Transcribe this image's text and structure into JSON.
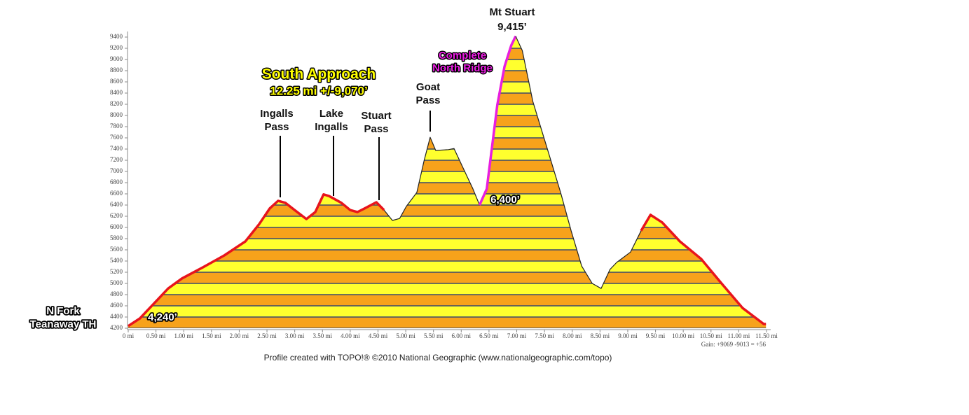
{
  "chart_data": {
    "type": "area",
    "footer": "Profile created with TOPO!® ©2010 National Geographic (www.nationalgeographic.com/topo)",
    "gain": "Gain: +9069 -9013 = +56",
    "annotations": [
      {
        "lines": [
          "Mt Stuart",
          "9,415’"
        ]
      },
      {
        "lines": [
          "South Approach"
        ]
      },
      {
        "lines": [
          "12.25 mi +/-9,070’"
        ]
      },
      {
        "lines": [
          "Complete",
          "North Ridge"
        ]
      },
      {
        "lines": [
          "Goat",
          "Pass"
        ]
      },
      {
        "lines": [
          "Ingalls",
          "Pass"
        ]
      },
      {
        "lines": [
          "Lake",
          "Ingalls"
        ]
      },
      {
        "lines": [
          "Stuart",
          "Pass"
        ]
      },
      {
        "lines": [
          "6,400’"
        ]
      },
      {
        "lines": [
          "4,240’"
        ]
      },
      {
        "lines": [
          "N Fork",
          "Teanaway TH"
        ]
      }
    ],
    "band_step": 200,
    "band_colors": [
      "#f7a21b",
      "#ffff2e"
    ],
    "band_line_color": "#3b4a6b",
    "series": [
      {
        "color": "#e8141c",
        "x": [
          0,
          0.21,
          0.72,
          0.97,
          1.35,
          1.73,
          2.11,
          2.36,
          2.55,
          2.7,
          2.83,
          3.0,
          3.21,
          3.37,
          3.52,
          3.62,
          3.84,
          4.0,
          4.13,
          4.26,
          4.47,
          4.61
        ],
        "values": [
          4240,
          4375,
          4910,
          5090,
          5290,
          5500,
          5750,
          6060,
          6340,
          6475,
          6440,
          6310,
          6150,
          6275,
          6590,
          6560,
          6440,
          6310,
          6275,
          6340,
          6450,
          6310
        ]
      },
      {
        "color": "#222222",
        "x": [
          4.61,
          4.76,
          4.89,
          5.01,
          5.2,
          5.33,
          5.44,
          5.54,
          5.77,
          5.87,
          6.02,
          6.21,
          6.33
        ],
        "values": [
          6310,
          6125,
          6160,
          6375,
          6625,
          7190,
          7610,
          7375,
          7390,
          7410,
          7090,
          6690,
          6400
        ]
      },
      {
        "color": "#e81ee0",
        "x": [
          6.33,
          6.46,
          6.65,
          6.78,
          6.9,
          6.98
        ],
        "values": [
          6400,
          6690,
          8190,
          8875,
          9250,
          9415
        ]
      },
      {
        "color": "#222222",
        "x": [
          6.98,
          7.1,
          7.29,
          7.54,
          7.79,
          7.98,
          8.17,
          8.36,
          8.52,
          8.68,
          8.8,
          9.05,
          9.24
        ],
        "values": [
          9415,
          9160,
          8250,
          7440,
          6625,
          5940,
          5310,
          5000,
          4910,
          5250,
          5375,
          5560,
          5940
        ]
      },
      {
        "color": "#e8141c",
        "x": [
          9.24,
          9.41,
          9.62,
          9.94,
          10.32,
          10.69,
          11.07,
          11.45,
          11.49
        ],
        "values": [
          5940,
          6225,
          6090,
          5750,
          5440,
          5000,
          4560,
          4275,
          4275
        ]
      }
    ],
    "ylim": [
      4200,
      9400
    ],
    "yticks": [
      4200,
      4400,
      4600,
      4800,
      5000,
      5200,
      5400,
      5600,
      5800,
      6000,
      6200,
      6400,
      6600,
      6800,
      7000,
      7200,
      7400,
      7600,
      7800,
      8000,
      8200,
      8400,
      8600,
      8800,
      9000,
      9200,
      9400
    ],
    "xlim": [
      0,
      11.5
    ],
    "xticks": [
      {
        "value": 0,
        "label": "0 mi"
      },
      {
        "value": 0.5,
        "label": "0.50 mi"
      },
      {
        "value": 1,
        "label": "1.00 mi"
      },
      {
        "value": 1.5,
        "label": "1.50 mi"
      },
      {
        "value": 2,
        "label": "2.00 mi"
      },
      {
        "value": 2.5,
        "label": "2.50 mi"
      },
      {
        "value": 3,
        "label": "3.00 mi"
      },
      {
        "value": 3.5,
        "label": "3.50 mi"
      },
      {
        "value": 4,
        "label": "4.00 mi"
      },
      {
        "value": 4.5,
        "label": "4.50 mi"
      },
      {
        "value": 5,
        "label": "5.00 mi"
      },
      {
        "value": 5.5,
        "label": "5.50 mi"
      },
      {
        "value": 6,
        "label": "6.00 mi"
      },
      {
        "value": 6.5,
        "label": "6.50 mi"
      },
      {
        "value": 7,
        "label": "7.00 mi"
      },
      {
        "value": 7.5,
        "label": "7.50 mi"
      },
      {
        "value": 8,
        "label": "8.00 mi"
      },
      {
        "value": 8.5,
        "label": "8.50 mi"
      },
      {
        "value": 9,
        "label": "9.00 mi"
      },
      {
        "value": 9.5,
        "label": "9.50 mi"
      },
      {
        "value": 10,
        "label": "10.00 mi"
      },
      {
        "value": 10.5,
        "label": "10.50 mi"
      },
      {
        "value": 11,
        "label": "11.00 mi"
      },
      {
        "value": 11.5,
        "label": "11.50 mi"
      }
    ]
  }
}
